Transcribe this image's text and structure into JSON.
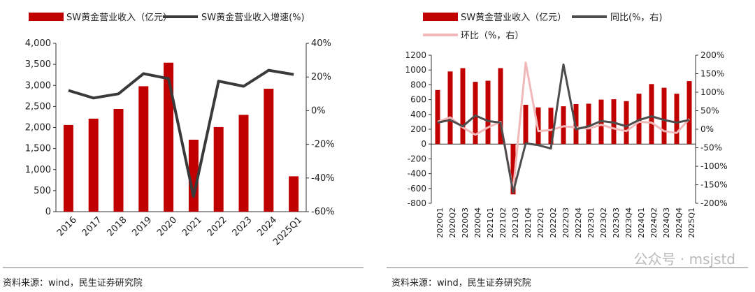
{
  "chart_data": [
    {
      "type": "bar+line",
      "categories": [
        "2016",
        "2017",
        "2018",
        "2019",
        "2020",
        "2021",
        "2022",
        "2023",
        "2024",
        "2025Q1"
      ],
      "series": [
        {
          "name": "SW黄金营业收入（亿元）",
          "type": "bar",
          "axis": "left",
          "color": "#c00000",
          "values": [
            2060,
            2210,
            2440,
            2980,
            3540,
            1710,
            2010,
            2300,
            2920,
            840
          ]
        },
        {
          "name": "SW黄金营业收入增速(%)",
          "type": "line",
          "axis": "right",
          "color": "#3a3a3a",
          "values": [
            12,
            7.5,
            10,
            22,
            19,
            -51,
            17.5,
            14.5,
            24,
            21.5
          ]
        }
      ],
      "y_left": {
        "min": 0,
        "max": 4000,
        "ticks": [
          "0",
          "500",
          "1,000",
          "1,500",
          "2,000",
          "2,500",
          "3,000",
          "3,500",
          "4,000"
        ]
      },
      "y_right": {
        "min": -60,
        "max": 40,
        "ticks": [
          "-60%",
          "-40%",
          "-20%",
          "0%",
          "20%",
          "40%"
        ]
      },
      "legend_position": "top",
      "source": "资料来源：wind，民生证券研究院"
    },
    {
      "type": "bar+line",
      "categories": [
        "2020Q1",
        "2020Q2",
        "2020Q3",
        "2020Q4",
        "2021Q1",
        "2021Q2",
        "2021Q3",
        "2021Q4",
        "2022Q1",
        "2022Q2",
        "2022Q3",
        "2022Q4",
        "2023Q1",
        "2023Q2",
        "2023Q3",
        "2023Q4",
        "2024Q1",
        "2024Q2",
        "2024Q3",
        "2024Q4",
        "2025Q1"
      ],
      "series": [
        {
          "name": "SW黄金营业收入（亿元）",
          "type": "bar",
          "axis": "left",
          "color": "#c00000",
          "values": [
            730,
            980,
            1025,
            840,
            855,
            1025,
            -680,
            530,
            495,
            490,
            510,
            540,
            545,
            600,
            605,
            580,
            680,
            810,
            760,
            680,
            850
          ]
        },
        {
          "name": "同比(%，右)",
          "type": "line",
          "axis": "right",
          "color": "#4d4d4d",
          "values": [
            18,
            25,
            8,
            37,
            22,
            18,
            -170,
            -38,
            -43,
            -52,
            175,
            0,
            8,
            22,
            18,
            8,
            25,
            35,
            25,
            18,
            25
          ]
        },
        {
          "name": "环比（%，右）",
          "type": "line",
          "axis": "right",
          "color": "#f0b8b8",
          "values": [
            20,
            32,
            5,
            -15,
            5,
            20,
            -165,
            180,
            -5,
            -2,
            8,
            5,
            2,
            12,
            2,
            -5,
            20,
            18,
            -5,
            -10,
            28
          ]
        }
      ],
      "y_left": {
        "min": -800,
        "max": 1200,
        "ticks": [
          "-800",
          "-600",
          "-400",
          "-200",
          "0",
          "200",
          "400",
          "600",
          "800",
          "1000",
          "1200"
        ]
      },
      "y_right": {
        "min": -200,
        "max": 200,
        "ticks": [
          "-200%",
          "-150%",
          "-100%",
          "-50%",
          "0%",
          "50%",
          "100%",
          "150%",
          "200%"
        ]
      },
      "legend_position": "top",
      "source": "资料来源：wind，民生证券研究院"
    }
  ],
  "watermark": "公众号 · msjstd"
}
